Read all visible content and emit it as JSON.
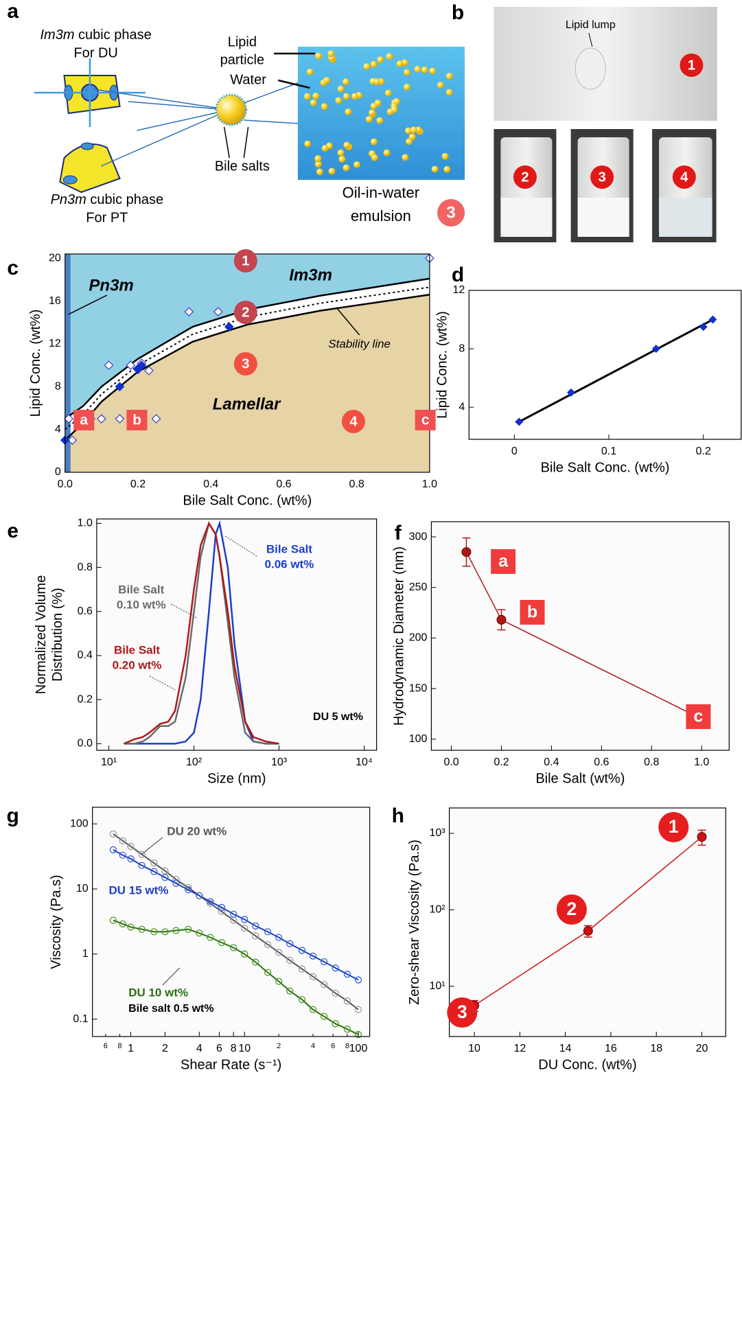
{
  "figure": {
    "panel_labels": [
      "a",
      "b",
      "c",
      "d",
      "e",
      "f",
      "g",
      "h"
    ],
    "a": {
      "im3m_title": [
        "Im3m",
        " cubic phase"
      ],
      "im3m_for": "For DU",
      "pn3m_title": [
        "Pn3m",
        " cubic phase"
      ],
      "pn3m_for": "For PT",
      "lipid_particle": [
        "Lipid",
        "particle"
      ],
      "water": "Water",
      "bile_salts": "Bile salts",
      "emulsion": [
        "Oil-in-water",
        "emulsion"
      ],
      "badge": "3"
    },
    "b": {
      "lipid_lump": "Lipid lump",
      "badges": [
        "1",
        "2",
        "3",
        "4"
      ]
    }
  },
  "chart_data": [
    {
      "type": "phase",
      "xlabel": "Bile Salt Conc. (wt%)",
      "ylabel": "Lipid Conc. (wt%)",
      "xlim": [
        0,
        1
      ],
      "ylim": [
        0,
        20.4
      ],
      "xticks": [
        {
          "value": 0,
          "label": "0.0"
        },
        0.2,
        0.4,
        0.6,
        0.8,
        {
          "value": 1,
          "label": "1.0"
        }
      ],
      "yticks": [
        0,
        4,
        8,
        12,
        16,
        20
      ],
      "region_colors": {
        "upper": "#92d0e4",
        "lower": "#e6d3a6",
        "band": "#ffffff",
        "pn3m": "#4a7fc6"
      },
      "pn3m_band": [
        0,
        0.015
      ],
      "boundaries": [
        {
          "style": "solid",
          "x": [
            0,
            0.05,
            0.1,
            0.2,
            0.35,
            0.5,
            0.7,
            1.0
          ],
          "values": [
            5,
            6.2,
            8,
            10.6,
            13.6,
            15.2,
            16.5,
            18.1
          ]
        },
        {
          "style": "dotted",
          "x": [
            0,
            0.05,
            0.1,
            0.2,
            0.35,
            0.5,
            0.7,
            1.0
          ],
          "values": [
            4,
            5.4,
            7.3,
            10,
            12.9,
            14.5,
            15.8,
            17.3
          ]
        },
        {
          "style": "solid",
          "x": [
            0,
            0.05,
            0.1,
            0.2,
            0.35,
            0.5,
            0.7,
            1.0
          ],
          "values": [
            3,
            4.6,
            6.6,
            9.4,
            12.2,
            13.8,
            15.1,
            16.6
          ]
        }
      ],
      "series": [
        {
          "marker": "open",
          "color": "#3a3acc",
          "x": [
            0.01,
            0.02,
            0.07,
            0.1,
            0.12,
            0.15,
            0.18,
            0.2,
            0.21,
            0.23,
            0.25,
            0.34,
            0.42,
            0.5,
            1.0
          ],
          "values": [
            5,
            3,
            5,
            5,
            10,
            5,
            10,
            9.7,
            10.2,
            9.5,
            5,
            15,
            15,
            15.2,
            20
          ]
        },
        {
          "marker": "filled",
          "color": "#1030d0",
          "x": [
            0.0,
            0.15,
            0.2,
            0.21,
            0.45
          ],
          "values": [
            3,
            8,
            9.6,
            10,
            13.6
          ]
        }
      ],
      "region_labels": [
        "Pn3m",
        "Im3m",
        "Lamellar"
      ],
      "stability_label": "Stability line",
      "badges": [
        "1",
        "2",
        "3",
        "4"
      ],
      "sample_labels": [
        "a",
        "b",
        "c"
      ]
    },
    {
      "type": "scatter",
      "xlabel": "Bile Salt Conc. (wt%)",
      "ylabel": "Lipid Conc. (wt%)",
      "xlim": [
        -0.048,
        0.24
      ],
      "ylim": [
        1.8,
        12
      ],
      "xticks": [
        0,
        0.1,
        0.2
      ],
      "yticks": [
        4,
        8,
        12
      ],
      "fit_color": "#000000",
      "series": [
        {
          "color": "#1030d0",
          "x": [
            0.005,
            0.06,
            0.15,
            0.2,
            0.21
          ],
          "values": [
            3,
            5,
            8,
            9.5,
            10
          ]
        }
      ]
    },
    {
      "type": "line",
      "xscale": "log",
      "xlabel": "Size (nm)",
      "ylabel": [
        "Normalized Volume",
        "Distribution (%)"
      ],
      "xlim": [
        7.2,
        14000
      ],
      "ylim": [
        -0.03,
        1.02
      ],
      "xticks": [
        {
          "value": 10,
          "label": "10¹"
        },
        {
          "value": 100,
          "label": "10²"
        },
        {
          "value": 1000,
          "label": "10³"
        },
        {
          "value": 10000,
          "label": "10⁴"
        }
      ],
      "yticks": [
        {
          "value": 0,
          "label": "0.0"
        },
        0.2,
        0.4,
        0.6,
        0.8,
        {
          "value": 1,
          "label": "1.0"
        }
      ],
      "annotation": "DU 5 wt%",
      "series": [
        {
          "label": [
            "Bile Salt",
            "0.06 wt%"
          ],
          "color": "#1a3fc8",
          "x": [
            15,
            20,
            25,
            30,
            40,
            50,
            60,
            80,
            100,
            120,
            150,
            180,
            200,
            250,
            300,
            400,
            500,
            700,
            1000
          ],
          "values": [
            0,
            0,
            0,
            0,
            0,
            0,
            0,
            0.01,
            0.05,
            0.2,
            0.6,
            0.95,
            1.0,
            0.8,
            0.45,
            0.1,
            0.01,
            0,
            0
          ]
        },
        {
          "label": [
            "Bile Salt",
            "0.10 wt%"
          ],
          "color": "#6a6a6a",
          "x": [
            15,
            20,
            25,
            30,
            40,
            50,
            60,
            80,
            100,
            120,
            150,
            180,
            200,
            250,
            300,
            400,
            500,
            700,
            1000
          ],
          "values": [
            0,
            0,
            0.01,
            0.03,
            0.08,
            0.08,
            0.1,
            0.3,
            0.6,
            0.85,
            1.0,
            0.95,
            0.85,
            0.55,
            0.3,
            0.05,
            0.01,
            0,
            0
          ]
        },
        {
          "label": [
            "Bile Salt",
            "0.20 wt%"
          ],
          "color": "#b01818",
          "x": [
            15,
            20,
            25,
            30,
            40,
            50,
            60,
            80,
            100,
            120,
            150,
            180,
            200,
            250,
            300,
            400,
            500,
            700,
            1000
          ],
          "values": [
            0,
            0.02,
            0.03,
            0.05,
            0.09,
            0.1,
            0.15,
            0.4,
            0.7,
            0.9,
            1.0,
            0.95,
            0.85,
            0.6,
            0.35,
            0.1,
            0.03,
            0.01,
            0
          ]
        }
      ]
    },
    {
      "type": "errorbar",
      "xlabel": "Bile Salt  (wt%)",
      "ylabel": "Hydrodynamic Diameter (nm)",
      "xlim": [
        -0.08,
        1.11
      ],
      "ylim": [
        89,
        315
      ],
      "xticks": [
        {
          "value": 0,
          "label": "0.0"
        },
        0.2,
        0.4,
        0.6,
        0.8,
        {
          "value": 1,
          "label": "1.0"
        }
      ],
      "yticks": [
        100,
        150,
        200,
        250,
        300
      ],
      "series": [
        {
          "color": "#b01818",
          "x": [
            0.06,
            0.2,
            1.0
          ],
          "values": [
            285,
            218,
            120
          ],
          "errors": [
            14,
            10,
            5
          ]
        }
      ],
      "point_labels": [
        "a",
        "b",
        "c"
      ]
    },
    {
      "type": "line-marker",
      "xscale": "log",
      "yscale": "log",
      "xlabel": "Shear Rate (s⁻¹)",
      "ylabel": "Viscosity (Pa.s)",
      "xlim": [
        0.46,
        126
      ],
      "ylim": [
        0.054,
        180
      ],
      "xticks": [
        {
          "value": 0.6,
          "label": "6"
        },
        {
          "value": 0.8,
          "label": "8"
        },
        1,
        {
          "value": 2,
          "label": "2"
        },
        {
          "value": 4,
          "label": "4"
        },
        {
          "value": 6,
          "label": "6"
        },
        {
          "value": 8,
          "label": "8"
        },
        10,
        {
          "value": 20,
          "label": "2"
        },
        {
          "value": 40,
          "label": "4"
        },
        {
          "value": 60,
          "label": "6"
        },
        {
          "value": 80,
          "label": "8"
        },
        100
      ],
      "yticks": [
        0.1,
        1,
        10,
        100
      ],
      "annotation": "Bile salt 0.5 wt%",
      "series": [
        {
          "name": "DU 20 wt%",
          "color": "#555555",
          "marker_color": "#9a9a9a",
          "x": [
            0.7,
            0.85,
            1,
            1.25,
            1.6,
            2,
            2.5,
            3.2,
            4,
            5,
            6.3,
            8,
            10,
            12.5,
            16,
            20,
            25,
            32,
            40,
            50,
            63,
            80,
            100
          ],
          "values": [
            70,
            55,
            45,
            34,
            25,
            19,
            14,
            10.5,
            7.9,
            6,
            4.5,
            3.3,
            2.5,
            1.9,
            1.4,
            1.06,
            0.8,
            0.59,
            0.45,
            0.34,
            0.25,
            0.19,
            0.14
          ]
        },
        {
          "name": "DU 15 wt%",
          "color": "#1c3fc0",
          "marker_color": "#3a62d8",
          "x": [
            0.7,
            0.85,
            1,
            1.25,
            1.6,
            2,
            2.5,
            3.2,
            4,
            5,
            6.3,
            8,
            10,
            12.5,
            16,
            20,
            25,
            32,
            40,
            50,
            63,
            80,
            100
          ],
          "values": [
            40,
            33,
            29,
            23,
            18.5,
            15,
            12.2,
            9.7,
            7.9,
            6.4,
            5.2,
            4.1,
            3.4,
            2.7,
            2.2,
            1.8,
            1.44,
            1.14,
            0.93,
            0.76,
            0.61,
            0.49,
            0.4
          ]
        },
        {
          "name": "DU 10 wt%",
          "color": "#2a6e10",
          "marker_color": "#4a9a20",
          "x": [
            0.7,
            0.85,
            1,
            1.25,
            1.6,
            2,
            2.5,
            3.2,
            4,
            5,
            6.3,
            8,
            10,
            12.5,
            16,
            20,
            25,
            32,
            40,
            50,
            63,
            80,
            100
          ],
          "values": [
            3.3,
            2.9,
            2.6,
            2.4,
            2.2,
            2.2,
            2.3,
            2.4,
            2.1,
            1.8,
            1.5,
            1.25,
            1.0,
            0.75,
            0.52,
            0.38,
            0.27,
            0.2,
            0.14,
            0.11,
            0.085,
            0.07,
            0.058
          ]
        }
      ]
    },
    {
      "type": "errorbar",
      "yscale": "log",
      "xlabel": "DU Conc. (wt%)",
      "ylabel": "Zero-shear Viscosity (Pa.s)",
      "xlim": [
        8.9,
        21.05
      ],
      "ylim": [
        2.2,
        2150
      ],
      "xticks": [
        10,
        12,
        14,
        16,
        18,
        20
      ],
      "yticks": [
        {
          "value": 10,
          "label": "10¹"
        },
        {
          "value": 100,
          "label": "10²"
        },
        {
          "value": 1000,
          "label": "10³"
        }
      ],
      "series": [
        {
          "color": "#c81414",
          "x": [
            10,
            15,
            20
          ],
          "values": [
            5.6,
            53,
            900
          ],
          "errors": [
            0.9,
            9,
            200
          ]
        }
      ],
      "point_labels": [
        "3",
        "2",
        "1"
      ]
    }
  ]
}
